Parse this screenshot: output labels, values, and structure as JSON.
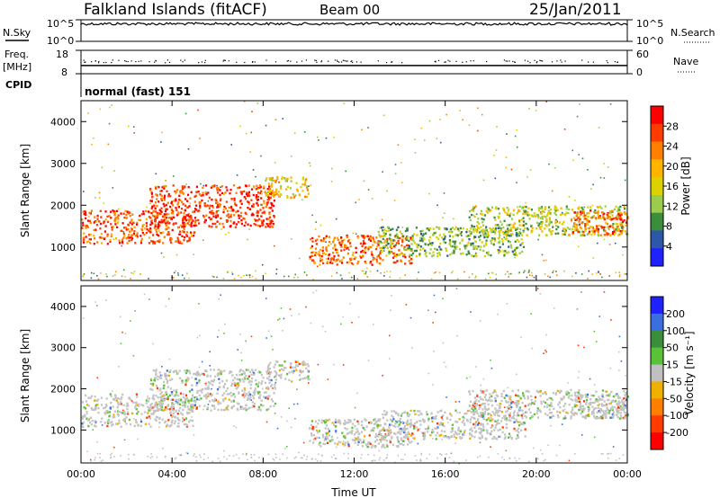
{
  "header": {
    "station": "Falkland Islands (fitACF)",
    "beam": "Beam 00",
    "date": "25/Jan/2011"
  },
  "left_labels": {
    "nsky": "N.Sky",
    "freq": "Freq.",
    "freq_unit": "[MHz]",
    "cpid": "CPID"
  },
  "right_labels": {
    "nsearch": "N.Search",
    "nave": "Nave"
  },
  "cpid_text": "normal (fast) 151",
  "colors": {
    "red": "#ff1a00",
    "orange_red": "#ff5a00",
    "orange": "#ff8c00",
    "yellow_orange": "#f2b600",
    "yellow_green": "#b9d23c",
    "green": "#3b8e3b",
    "blue": "#2b3fbf",
    "grey_scatter": "#c8c8c8"
  },
  "chart_data": [
    {
      "type": "line",
      "name": "noise",
      "left_ticks": [
        "10^5",
        "10^0"
      ],
      "right_ticks": [
        "10^5",
        "10^0"
      ],
      "note_series": "N.Sky solid near top; N.Search dotted"
    },
    {
      "type": "line",
      "name": "frequency_nave",
      "left_ticks": [
        "18",
        "8"
      ],
      "right_ticks": [
        "60",
        "0"
      ],
      "freq_level_mhz": 11.5,
      "nave_level": 33
    },
    {
      "type": "heatmap",
      "name": "power",
      "ylabel": "Slant Range [km]",
      "y_ticks": [
        1000,
        2000,
        3000,
        4000
      ],
      "ylim": [
        200,
        4500
      ],
      "x_ticks": [
        "00:00",
        "04:00",
        "08:00",
        "12:00",
        "16:00",
        "20:00",
        "00:00"
      ],
      "xlim_hours": [
        0,
        24
      ],
      "colorbar_label": "Power [dB]",
      "colorbar_ticks": [
        28,
        24,
        20,
        16,
        12,
        8,
        4
      ],
      "colorbar_colors": [
        "#ff0000",
        "#ff3c00",
        "#ff8000",
        "#ffb400",
        "#ddd200",
        "#9bcc4d",
        "#3b8e3b",
        "#2d57a8",
        "#1f22ff"
      ],
      "bands": [
        {
          "t0": 0.0,
          "t1": 5.0,
          "r0": 1100,
          "r1": 1900,
          "level": 26
        },
        {
          "t0": 3.0,
          "t1": 8.5,
          "r0": 1500,
          "r1": 2500,
          "level": 27
        },
        {
          "t0": 8.0,
          "t1": 10.0,
          "r0": 2200,
          "r1": 2700,
          "level": 18
        },
        {
          "t0": 10.0,
          "t1": 14.5,
          "r0": 600,
          "r1": 1300,
          "level": 25
        },
        {
          "t0": 13.0,
          "t1": 19.5,
          "r0": 800,
          "r1": 1500,
          "level": 12
        },
        {
          "t0": 17.0,
          "t1": 24.0,
          "r0": 1300,
          "r1": 2000,
          "level": 14
        },
        {
          "t0": 21.5,
          "t1": 24.0,
          "r0": 1300,
          "r1": 1900,
          "level": 26
        }
      ]
    },
    {
      "type": "heatmap",
      "name": "velocity",
      "ylabel": "Slant Range [km]",
      "y_ticks": [
        1000,
        2000,
        3000,
        4000
      ],
      "ylim": [
        200,
        4500
      ],
      "x_ticks": [
        "00:00",
        "04:00",
        "08:00",
        "12:00",
        "16:00",
        "20:00",
        "00:00"
      ],
      "xlabel": "Time UT",
      "colorbar_label": "Velocity [m s⁻¹]",
      "colorbar_ticks": [
        200,
        100,
        50,
        15,
        -15,
        -50,
        -100,
        -200
      ],
      "colorbar_colors": [
        "#1f22ff",
        "#3b6fe0",
        "#3b8e3b",
        "#5ac238",
        "#c0c0c0",
        "#f0b000",
        "#ff8000",
        "#ff3c00",
        "#ff0000"
      ]
    }
  ]
}
